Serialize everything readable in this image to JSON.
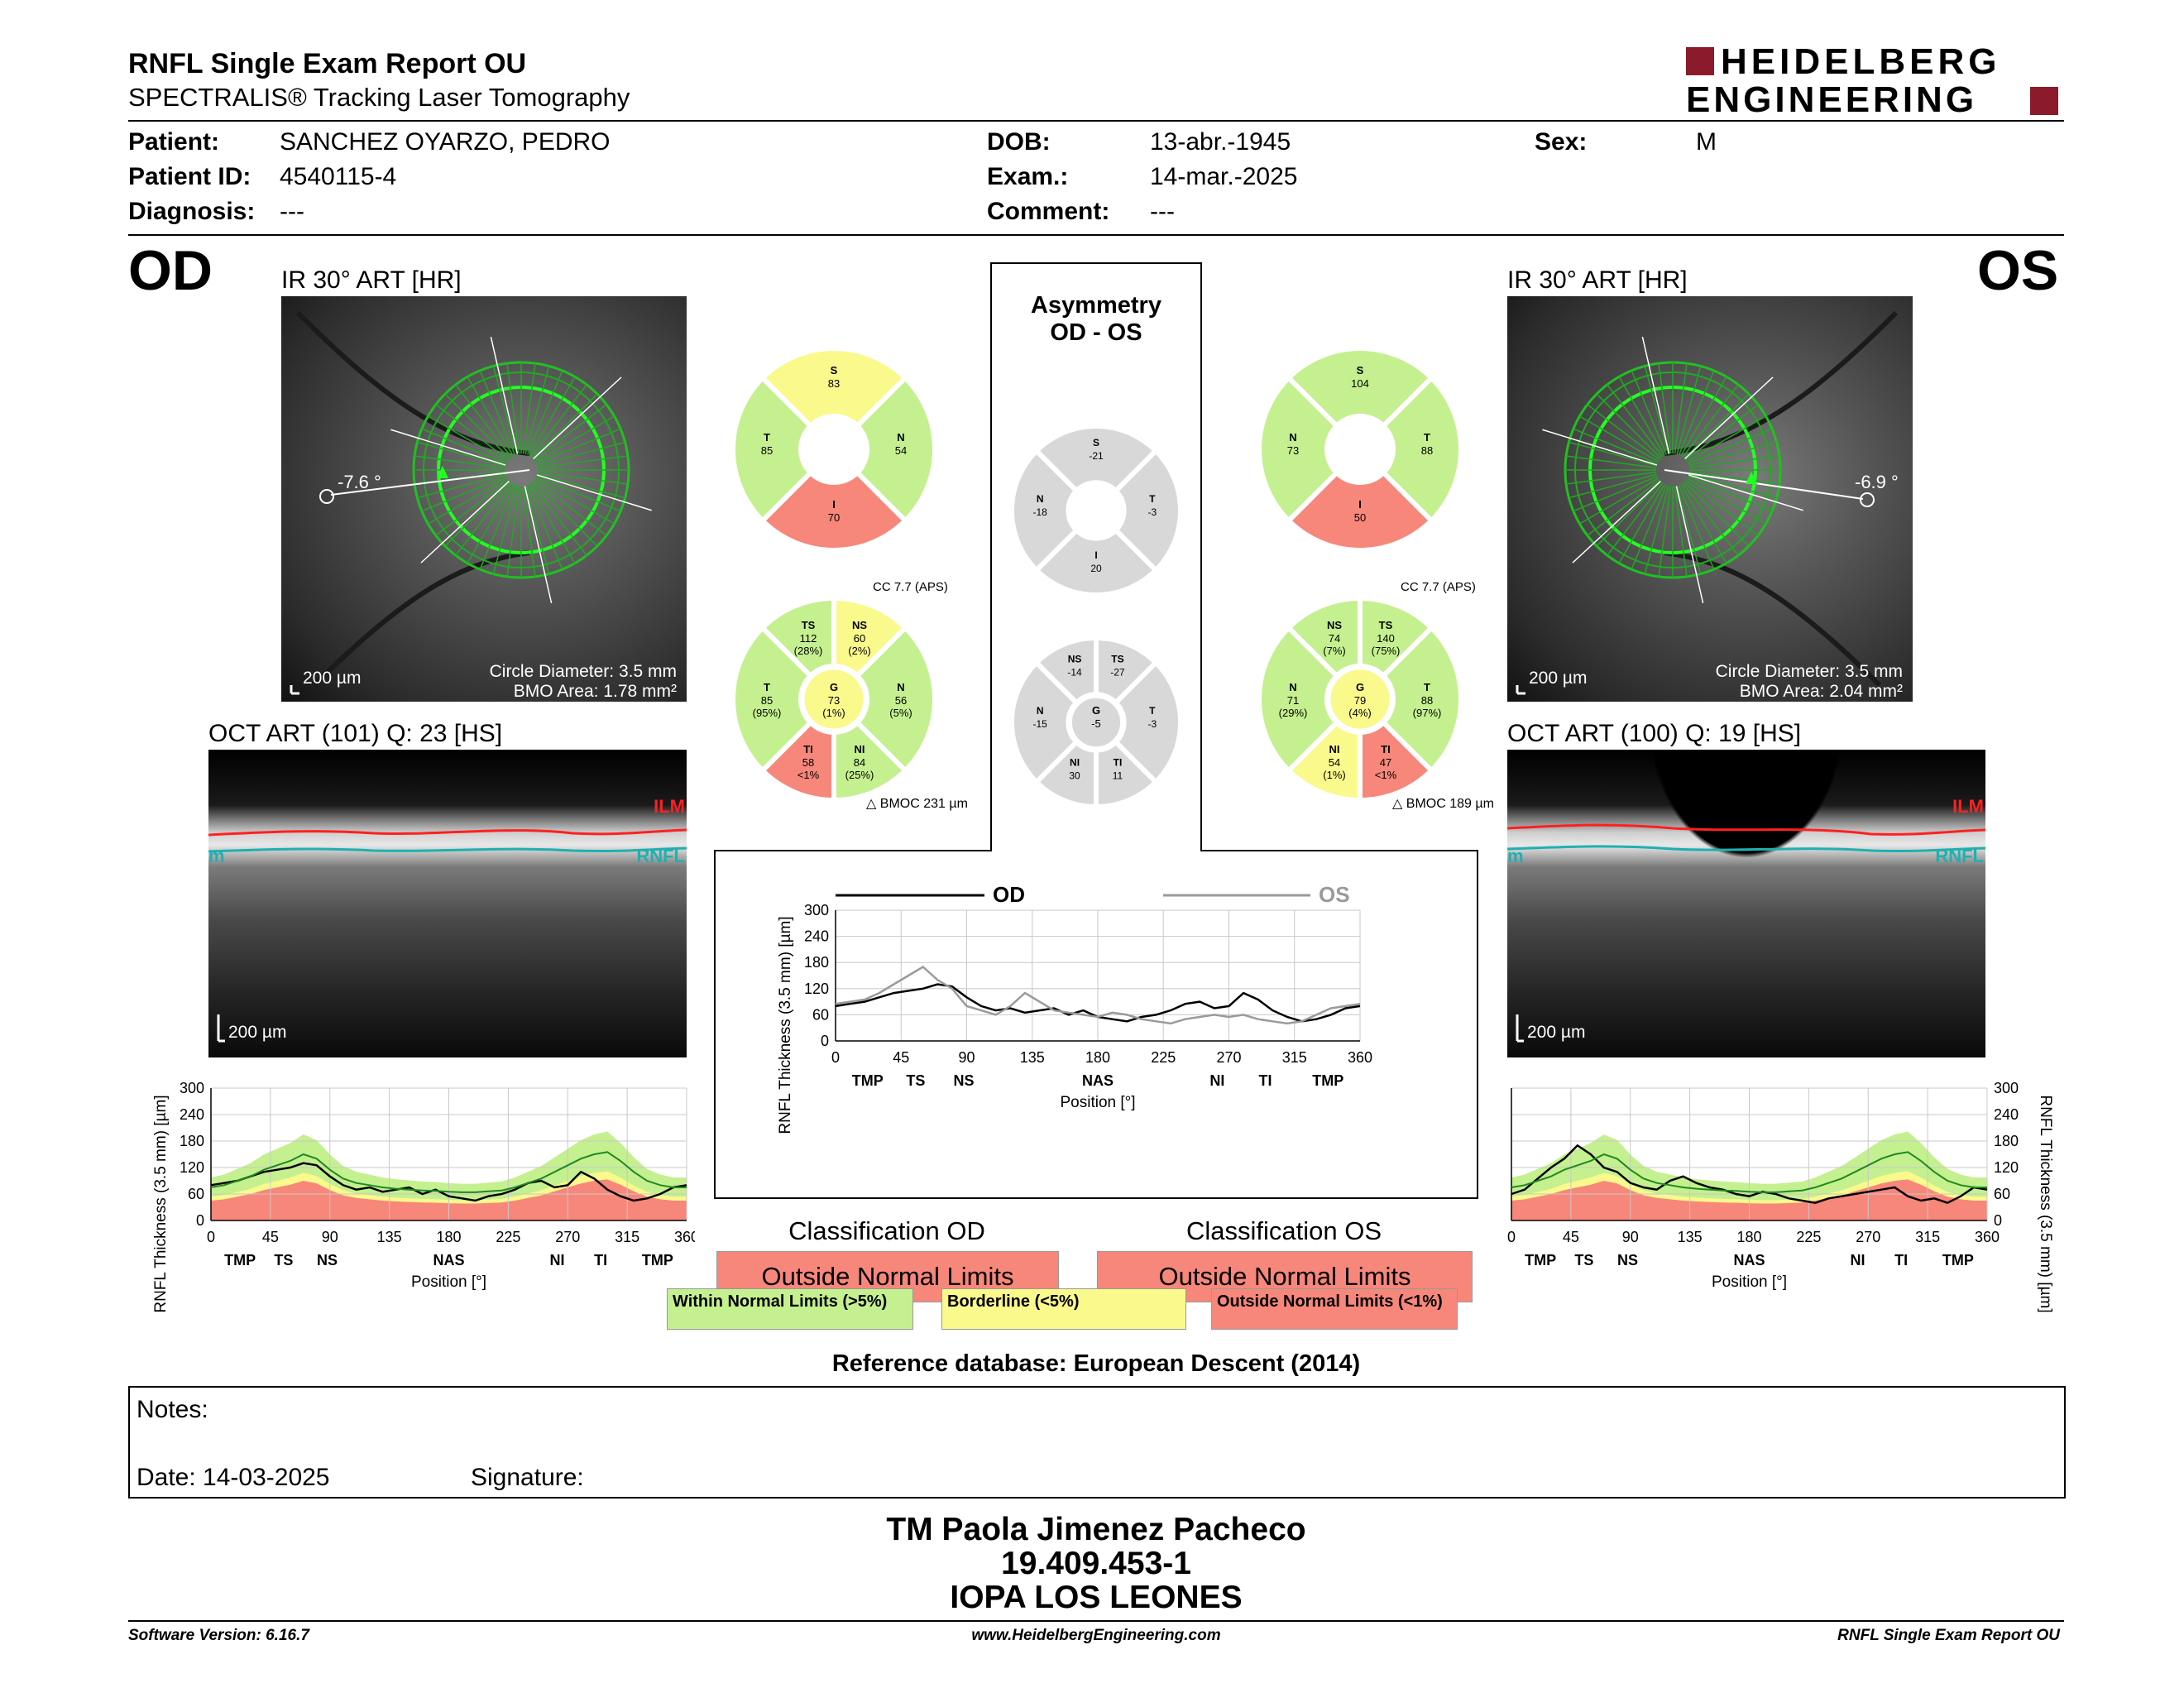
{
  "header": {
    "title": "RNFL Single Exam Report OU",
    "subtitle": "SPECTRALIS® Tracking Laser Tomography",
    "brand_line1": "HEIDELBERG",
    "brand_line2": "ENGINEERING",
    "brand_color": "#8b1a2a",
    "patient_label": "Patient:",
    "patient": "SANCHEZ OYARZO, PEDRO",
    "pid_label": "Patient ID:",
    "pid": "4540115-4",
    "diag_label": "Diagnosis:",
    "diag": "---",
    "dob_label": "DOB:",
    "dob": "13-abr.-1945",
    "exam_label": "Exam.:",
    "exam": "14-mar.-2025",
    "comment_label": "Comment:",
    "comment": "---",
    "sex_label": "Sex:",
    "sex": "M"
  },
  "od": {
    "eye": "OD",
    "ir_title": "IR 30° ART [HR]",
    "angle": "-7.6 °",
    "scale": "200 µm",
    "circle": "Circle Diameter: 3.5 mm",
    "bmo": "BMO Area: 1.78 mm²",
    "oct_title": "OCT ART (101) Q: 23 [HS]",
    "oct_scale": "200 µm",
    "ilm": "ILM",
    "rnfl": "RNFL",
    "rnfl_left": "m",
    "cc": "CC 7.7 (APS)",
    "bmoc": "BMOC 231 µm",
    "sectors4": {
      "S": {
        "label": "S",
        "value": "83"
      },
      "N": {
        "label": "N",
        "value": "54"
      },
      "I": {
        "label": "I",
        "value": "70"
      },
      "T": {
        "label": "T",
        "value": "85"
      }
    },
    "sectors6": {
      "TS": {
        "label": "TS",
        "value": "112",
        "pct": "(28%)"
      },
      "NS": {
        "label": "NS",
        "value": "60",
        "pct": "(2%)"
      },
      "N": {
        "label": "N",
        "value": "56",
        "pct": "(5%)"
      },
      "NI": {
        "label": "NI",
        "value": "84",
        "pct": "(25%)"
      },
      "TI": {
        "label": "TI",
        "value": "58",
        "pct": "<1%"
      },
      "T": {
        "label": "T",
        "value": "85",
        "pct": "(95%)"
      },
      "G": {
        "label": "G",
        "value": "73",
        "pct": "(1%)"
      }
    },
    "classification_title": "Classification OD",
    "classification": "Outside Normal Limits"
  },
  "os": {
    "eye": "OS",
    "ir_title": "IR 30° ART [HR]",
    "angle": "-6.9 °",
    "scale": "200 µm",
    "circle": "Circle Diameter: 3.5 mm",
    "bmo": "BMO Area: 2.04 mm²",
    "oct_title": "OCT ART (100) Q: 19 [HS]",
    "oct_scale": "200 µm",
    "ilm": "ILM",
    "rnfl": "RNFL",
    "rnfl_left": "m",
    "cc": "CC 7.7 (APS)",
    "bmoc": "BMOC 189 µm",
    "sectors4": {
      "S": {
        "label": "S",
        "value": "104"
      },
      "N": {
        "label": "N",
        "value": "73"
      },
      "I": {
        "label": "I",
        "value": "50"
      },
      "T": {
        "label": "T",
        "value": "88"
      }
    },
    "sectors6": {
      "NS": {
        "label": "NS",
        "value": "74",
        "pct": "(7%)"
      },
      "TS": {
        "label": "TS",
        "value": "140",
        "pct": "(75%)"
      },
      "T": {
        "label": "T",
        "value": "88",
        "pct": "(97%)"
      },
      "TI": {
        "label": "TI",
        "value": "47",
        "pct": "<1%"
      },
      "NI": {
        "label": "NI",
        "value": "54",
        "pct": "(1%)"
      },
      "N": {
        "label": "N",
        "value": "71",
        "pct": "(29%)"
      },
      "G": {
        "label": "G",
        "value": "79",
        "pct": "(4%)"
      }
    },
    "classification_title": "Classification OS",
    "classification": "Outside Normal Limits"
  },
  "asym": {
    "title1": "Asymmetry",
    "title2": "OD - OS",
    "sectors4": {
      "S": {
        "label": "S",
        "value": "-21"
      },
      "N": {
        "label": "N",
        "value": "-18"
      },
      "T": {
        "label": "T",
        "value": "-3"
      },
      "I": {
        "label": "I",
        "value": "20"
      }
    },
    "sectors6": {
      "NS": {
        "label": "NS",
        "value": "-14"
      },
      "TS": {
        "label": "TS",
        "value": "-27"
      },
      "T": {
        "label": "T",
        "value": "-3"
      },
      "TI": {
        "label": "TI",
        "value": "11"
      },
      "NI": {
        "label": "NI",
        "value": "30"
      },
      "N": {
        "label": "N",
        "value": "-15"
      },
      "G": {
        "label": "G",
        "value": "-5"
      }
    }
  },
  "colors": {
    "green": "#c5f08f",
    "yellow": "#faf98c",
    "red": "#f7877a",
    "gray": "#d8d8d8",
    "od_line": "#000000",
    "os_line": "#9a9a9a"
  },
  "legend": {
    "within": "Within Normal Limits (>5%)",
    "borderline": "Borderline (<5%)",
    "outside": "Outside Normal Limits (<1%)"
  },
  "reference": "Reference database: European Descent (2014)",
  "notes": {
    "notes_label": "Notes:",
    "date_label": "Date: 14-03-2025",
    "sig_label": "Signature:"
  },
  "signer": {
    "name": "TM Paola Jimenez Pacheco",
    "id": "19.409.453-1",
    "place": "IOPA LOS LEONES"
  },
  "footer": {
    "version": "Software Version: 6.16.7",
    "url": "www.HeidelbergEngineering.com",
    "report": "RNFL Single Exam Report OU"
  },
  "chart_data": [
    {
      "id": "od",
      "type": "line",
      "ylabel": "RNFL Thickness (3.5 mm) [µm]",
      "xlabel": "Position [°]",
      "xlim": [
        0,
        360
      ],
      "ylim": [
        0,
        300
      ],
      "yticks": [
        0,
        60,
        120,
        180,
        240,
        300
      ],
      "xticks": [
        0,
        45,
        90,
        135,
        180,
        225,
        270,
        315,
        360
      ],
      "regions": [
        "TMP",
        "TS",
        "NS",
        "NAS",
        "NI",
        "TI",
        "TMP"
      ],
      "x": [
        0,
        10,
        20,
        30,
        40,
        50,
        60,
        70,
        80,
        90,
        100,
        110,
        120,
        130,
        140,
        150,
        160,
        170,
        180,
        190,
        200,
        210,
        220,
        230,
        240,
        250,
        260,
        270,
        280,
        290,
        300,
        310,
        320,
        330,
        340,
        350,
        360
      ],
      "series": [
        {
          "name": "OD",
          "values": [
            80,
            85,
            90,
            100,
            110,
            115,
            120,
            130,
            125,
            100,
            80,
            70,
            75,
            65,
            70,
            75,
            60,
            70,
            55,
            50,
            45,
            55,
            60,
            70,
            85,
            90,
            75,
            80,
            110,
            95,
            70,
            55,
            45,
            50,
            60,
            75,
            80
          ]
        },
        {
          "name": "normal_mean",
          "values": [
            75,
            80,
            90,
            100,
            115,
            125,
            135,
            150,
            140,
            115,
            95,
            85,
            80,
            75,
            72,
            70,
            68,
            67,
            65,
            64,
            64,
            66,
            68,
            75,
            85,
            95,
            110,
            125,
            140,
            150,
            155,
            135,
            110,
            90,
            80,
            75,
            75
          ]
        }
      ]
    },
    {
      "id": "asym",
      "type": "line",
      "ylabel": "RNFL Thickness (3.5 mm) [µm]",
      "xlabel": "Position [°]",
      "xlim": [
        0,
        360
      ],
      "ylim": [
        0,
        300
      ],
      "yticks": [
        0,
        60,
        120,
        180,
        240,
        300
      ],
      "xticks": [
        0,
        45,
        90,
        135,
        180,
        225,
        270,
        315,
        360
      ],
      "regions": [
        "TMP",
        "TS",
        "NS",
        "NAS",
        "NI",
        "TI",
        "TMP"
      ],
      "x": [
        0,
        10,
        20,
        30,
        40,
        50,
        60,
        70,
        80,
        90,
        100,
        110,
        120,
        130,
        140,
        150,
        160,
        170,
        180,
        190,
        200,
        210,
        220,
        230,
        240,
        250,
        260,
        270,
        280,
        290,
        300,
        310,
        320,
        330,
        340,
        350,
        360
      ],
      "series": [
        {
          "name": "OD",
          "values": [
            80,
            85,
            90,
            100,
            110,
            115,
            120,
            130,
            125,
            100,
            80,
            70,
            75,
            65,
            70,
            75,
            60,
            70,
            55,
            50,
            45,
            55,
            60,
            70,
            85,
            90,
            75,
            80,
            110,
            95,
            70,
            55,
            45,
            50,
            60,
            75,
            80
          ]
        },
        {
          "name": "OS",
          "values": [
            85,
            90,
            95,
            110,
            130,
            150,
            170,
            140,
            120,
            80,
            70,
            60,
            80,
            110,
            90,
            70,
            65,
            60,
            55,
            65,
            60,
            50,
            45,
            40,
            50,
            55,
            60,
            55,
            60,
            50,
            45,
            40,
            45,
            60,
            75,
            80,
            85
          ]
        }
      ]
    },
    {
      "id": "os",
      "type": "line",
      "ylabel": "RNFL Thickness (3.5 mm) [µm]",
      "xlabel": "Position [°]",
      "xlim": [
        0,
        360
      ],
      "ylim": [
        0,
        300
      ],
      "yticks": [
        0,
        60,
        120,
        180,
        240,
        300
      ],
      "xticks": [
        0,
        45,
        90,
        135,
        180,
        225,
        270,
        315,
        360
      ],
      "regions": [
        "TMP",
        "TS",
        "NS",
        "NAS",
        "NI",
        "TI",
        "TMP"
      ],
      "x": [
        0,
        10,
        20,
        30,
        40,
        50,
        60,
        70,
        80,
        90,
        100,
        110,
        120,
        130,
        140,
        150,
        160,
        170,
        180,
        190,
        200,
        210,
        220,
        230,
        240,
        250,
        260,
        270,
        280,
        290,
        300,
        310,
        320,
        330,
        340,
        350,
        360
      ],
      "series": [
        {
          "name": "OS",
          "values": [
            60,
            70,
            95,
            120,
            140,
            170,
            150,
            120,
            110,
            85,
            75,
            70,
            90,
            100,
            85,
            75,
            70,
            60,
            55,
            65,
            60,
            50,
            45,
            40,
            50,
            55,
            60,
            65,
            70,
            75,
            55,
            45,
            50,
            40,
            55,
            75,
            70
          ]
        },
        {
          "name": "normal_mean",
          "values": [
            75,
            80,
            90,
            100,
            115,
            125,
            135,
            150,
            140,
            115,
            95,
            85,
            80,
            75,
            72,
            70,
            68,
            67,
            65,
            64,
            64,
            66,
            68,
            75,
            85,
            95,
            110,
            125,
            140,
            150,
            155,
            135,
            110,
            90,
            80,
            75,
            75
          ]
        }
      ]
    }
  ]
}
